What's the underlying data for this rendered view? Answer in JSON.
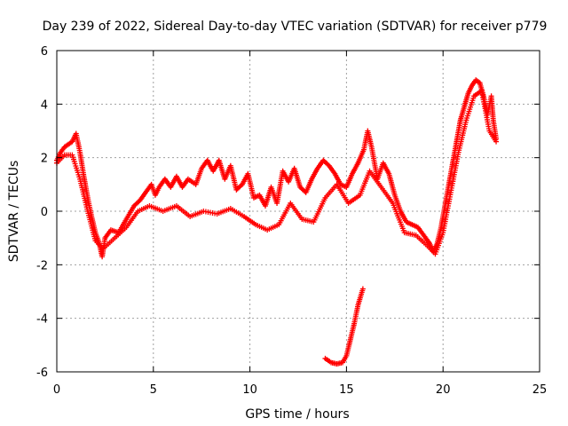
{
  "chart_data": {
    "type": "scatter",
    "title": "Day 239 of 2022, Sidereal Day-to-day VTEC variation (SDTVAR) for receiver p779",
    "xlabel": "GPS time / hours",
    "ylabel": "SDTVAR / TECUs",
    "xlim": [
      0,
      25
    ],
    "ylim": [
      -6,
      6
    ],
    "xticks": [
      0,
      5,
      10,
      15,
      20,
      25
    ],
    "xtick_labels": [
      "0",
      "5",
      "10",
      "15",
      "20",
      "25"
    ],
    "yticks": [
      -6,
      -4,
      -2,
      0,
      2,
      4,
      6
    ],
    "ytick_labels": [
      "-6",
      "-4",
      "-2",
      "0",
      "2",
      "4",
      "6"
    ],
    "grid": true,
    "marker": "+",
    "series": [
      {
        "name": "SDTVAR",
        "color": "#ff0000",
        "segments": [
          [
            [
              0.0,
              1.9
            ],
            [
              0.2,
              2.2
            ],
            [
              0.4,
              2.4
            ],
            [
              0.6,
              2.5
            ],
            [
              0.8,
              2.6
            ],
            [
              1.0,
              2.9
            ],
            [
              1.2,
              2.2
            ],
            [
              1.4,
              1.3
            ],
            [
              1.6,
              0.5
            ],
            [
              1.8,
              -0.2
            ],
            [
              2.0,
              -0.8
            ],
            [
              2.2,
              -1.2
            ],
            [
              2.35,
              -1.7
            ],
            [
              2.5,
              -1.0
            ],
            [
              2.8,
              -0.7
            ],
            [
              3.2,
              -0.8
            ],
            [
              3.6,
              -0.3
            ],
            [
              4.0,
              0.2
            ],
            [
              4.3,
              0.4
            ],
            [
              4.6,
              0.7
            ],
            [
              4.9,
              1.0
            ],
            [
              5.1,
              0.6
            ],
            [
              5.3,
              0.9
            ],
            [
              5.6,
              1.2
            ],
            [
              5.9,
              0.9
            ],
            [
              6.2,
              1.3
            ],
            [
              6.5,
              0.9
            ],
            [
              6.8,
              1.2
            ],
            [
              7.2,
              1.0
            ],
            [
              7.5,
              1.6
            ],
            [
              7.8,
              1.9
            ],
            [
              8.1,
              1.5
            ],
            [
              8.4,
              1.9
            ],
            [
              8.7,
              1.2
            ],
            [
              9.0,
              1.7
            ],
            [
              9.3,
              0.8
            ],
            [
              9.6,
              1.0
            ],
            [
              9.9,
              1.4
            ],
            [
              10.2,
              0.5
            ],
            [
              10.5,
              0.6
            ],
            [
              10.8,
              0.2
            ],
            [
              11.1,
              0.9
            ],
            [
              11.4,
              0.3
            ],
            [
              11.7,
              1.5
            ],
            [
              12.0,
              1.1
            ],
            [
              12.3,
              1.6
            ],
            [
              12.6,
              0.9
            ],
            [
              12.9,
              0.7
            ],
            [
              13.2,
              1.2
            ],
            [
              13.5,
              1.6
            ],
            [
              13.8,
              1.9
            ],
            [
              14.1,
              1.7
            ],
            [
              14.4,
              1.4
            ],
            [
              14.7,
              1.0
            ],
            [
              15.0,
              0.9
            ],
            [
              15.3,
              1.4
            ],
            [
              15.6,
              1.8
            ],
            [
              15.9,
              2.3
            ],
            [
              16.1,
              3.0
            ],
            [
              16.3,
              2.4
            ],
            [
              16.6,
              1.2
            ],
            [
              16.9,
              1.8
            ],
            [
              17.2,
              1.4
            ],
            [
              17.5,
              0.6
            ],
            [
              17.8,
              0.0
            ],
            [
              18.1,
              -0.4
            ],
            [
              18.4,
              -0.5
            ],
            [
              18.7,
              -0.6
            ],
            [
              19.0,
              -0.9
            ],
            [
              19.3,
              -1.2
            ],
            [
              19.5,
              -1.5
            ],
            [
              19.7,
              -1.2
            ],
            [
              19.9,
              -0.6
            ],
            [
              20.1,
              0.2
            ],
            [
              20.3,
              1.0
            ],
            [
              20.5,
              1.8
            ],
            [
              20.7,
              2.6
            ],
            [
              20.9,
              3.4
            ],
            [
              21.1,
              3.9
            ],
            [
              21.3,
              4.4
            ],
            [
              21.5,
              4.7
            ],
            [
              21.7,
              4.9
            ],
            [
              21.9,
              4.8
            ],
            [
              22.1,
              4.3
            ],
            [
              22.3,
              3.6
            ],
            [
              22.5,
              4.3
            ],
            [
              22.6,
              3.4
            ],
            [
              22.75,
              2.7
            ]
          ],
          [
            [
              13.9,
              -5.5
            ],
            [
              14.2,
              -5.65
            ],
            [
              14.5,
              -5.7
            ],
            [
              14.8,
              -5.65
            ],
            [
              15.0,
              -5.4
            ],
            [
              15.2,
              -4.8
            ],
            [
              15.4,
              -4.2
            ],
            [
              15.6,
              -3.5
            ],
            [
              15.85,
              -2.9
            ]
          ]
        ],
        "band_low": [
          [
            [
              0.0,
              1.8
            ],
            [
              0.4,
              2.1
            ],
            [
              0.8,
              2.1
            ],
            [
              1.2,
              1.2
            ],
            [
              1.6,
              0.0
            ],
            [
              2.0,
              -1.1
            ],
            [
              2.4,
              -1.4
            ],
            [
              3.0,
              -1.0
            ],
            [
              3.6,
              -0.6
            ],
            [
              4.2,
              0.0
            ],
            [
              4.8,
              0.2
            ],
            [
              5.5,
              0.0
            ],
            [
              6.2,
              0.2
            ],
            [
              6.9,
              -0.2
            ],
            [
              7.6,
              0.0
            ],
            [
              8.3,
              -0.1
            ],
            [
              9.0,
              0.1
            ],
            [
              9.7,
              -0.2
            ],
            [
              10.3,
              -0.5
            ],
            [
              10.9,
              -0.7
            ],
            [
              11.5,
              -0.5
            ],
            [
              12.1,
              0.3
            ],
            [
              12.7,
              -0.3
            ],
            [
              13.3,
              -0.4
            ],
            [
              13.9,
              0.5
            ],
            [
              14.5,
              1.0
            ],
            [
              15.1,
              0.3
            ],
            [
              15.7,
              0.6
            ],
            [
              16.2,
              1.5
            ],
            [
              16.8,
              0.9
            ],
            [
              17.4,
              0.3
            ],
            [
              18.0,
              -0.8
            ],
            [
              18.6,
              -0.9
            ],
            [
              19.2,
              -1.3
            ],
            [
              19.6,
              -1.6
            ],
            [
              20.0,
              -0.8
            ],
            [
              20.4,
              0.7
            ],
            [
              20.8,
              2.2
            ],
            [
              21.2,
              3.4
            ],
            [
              21.6,
              4.3
            ],
            [
              22.0,
              4.5
            ],
            [
              22.4,
              3.0
            ],
            [
              22.75,
              2.6
            ]
          ]
        ]
      }
    ]
  }
}
